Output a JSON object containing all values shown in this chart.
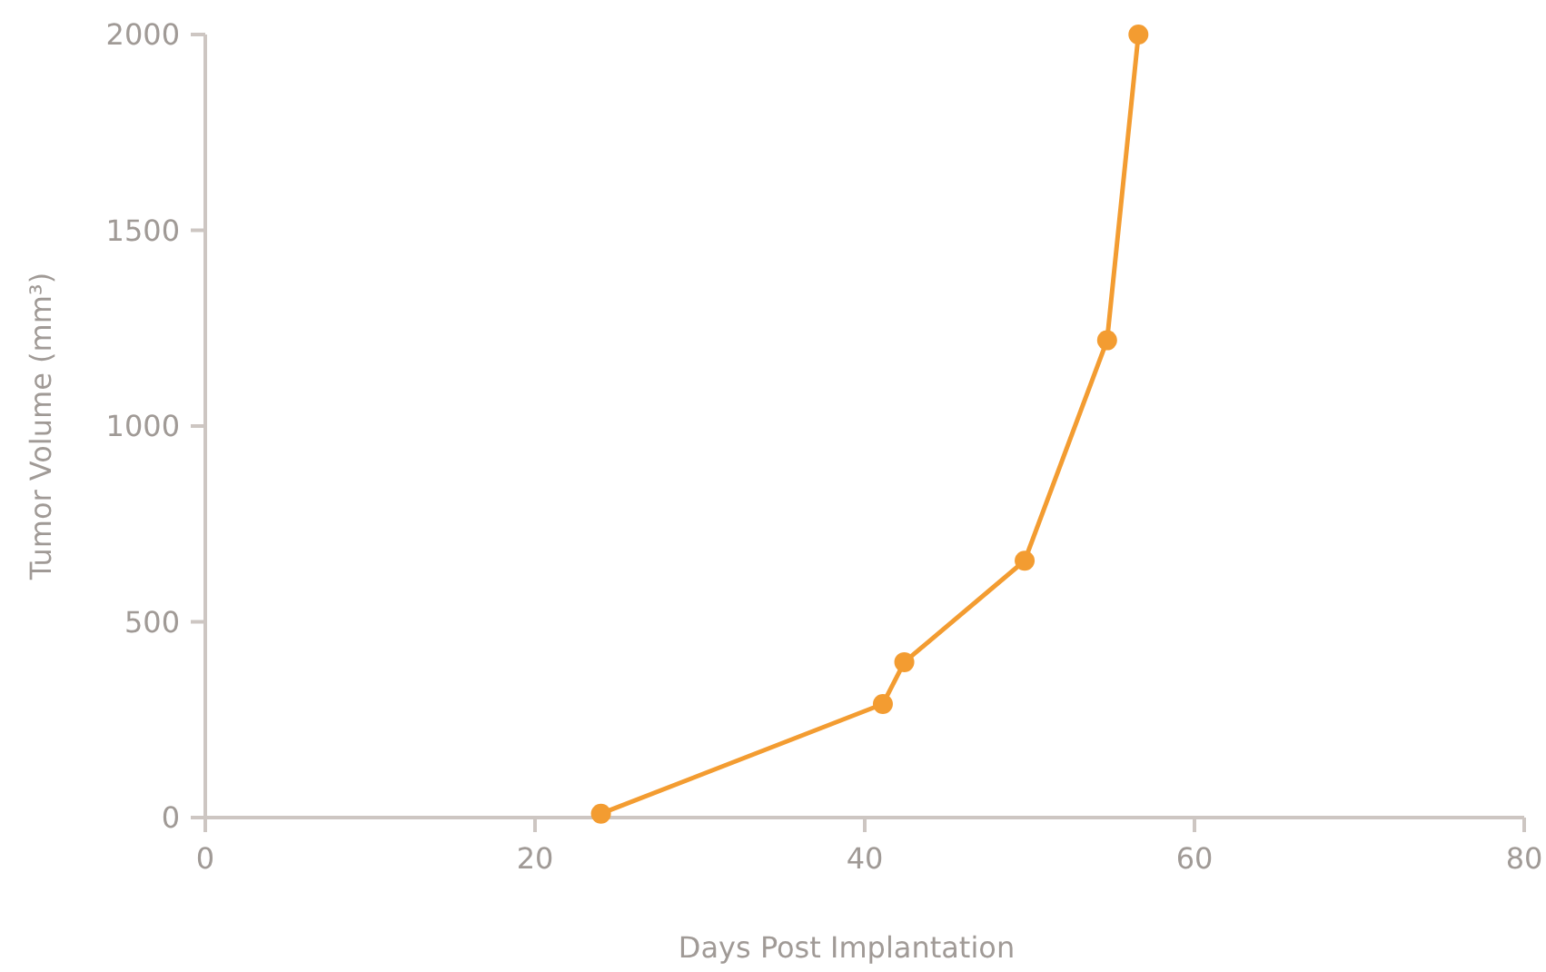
{
  "chart_data": {
    "type": "line",
    "xlabel": "Days Post Implantation",
    "ylabel": "Tumor Volume (mm³)",
    "x": [
      24,
      41.1,
      42.4,
      49.7,
      54.7,
      56.6
    ],
    "series": [
      {
        "color": "#f39c31",
        "values": [
          10,
          290,
          397,
          656,
          1219,
          2000
        ]
      }
    ],
    "xlim": [
      0,
      80
    ],
    "xticks": [
      0,
      20,
      40,
      60,
      80
    ],
    "ylim": [
      0,
      2000
    ],
    "yticks": [
      0,
      500,
      1000,
      1500,
      2000
    ],
    "marker": "circle",
    "line_style": "solid",
    "grid": false
  }
}
